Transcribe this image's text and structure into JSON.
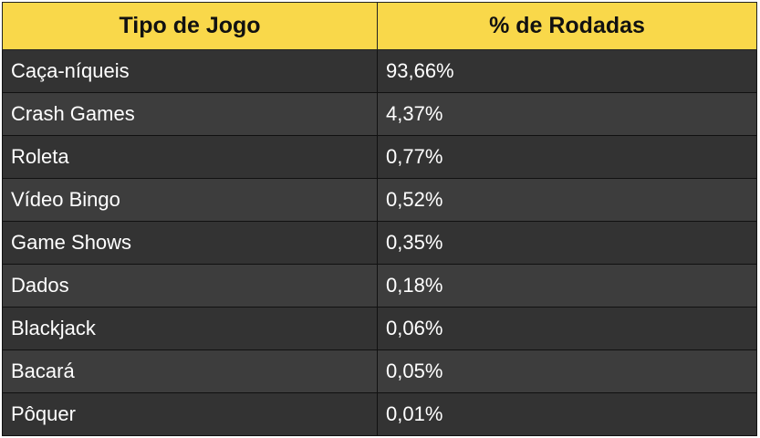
{
  "table": {
    "headers": [
      "Tipo de Jogo",
      "% de Rodadas"
    ],
    "rows": [
      [
        "Caça-níqueis",
        "93,66%"
      ],
      [
        "Crash Games",
        "4,37%"
      ],
      [
        "Roleta",
        "0,77%"
      ],
      [
        "Vídeo Bingo",
        "0,52%"
      ],
      [
        "Game Shows",
        "0,35%"
      ],
      [
        "Dados",
        "0,18%"
      ],
      [
        "Blackjack",
        "0,06%"
      ],
      [
        "Bacará",
        "0,05%"
      ],
      [
        "Pôquer",
        "0,01%"
      ]
    ],
    "colors": {
      "header_bg": "#f9d84a",
      "row_bg": "#333333",
      "row_alt_bg": "#3d3d3d"
    }
  }
}
